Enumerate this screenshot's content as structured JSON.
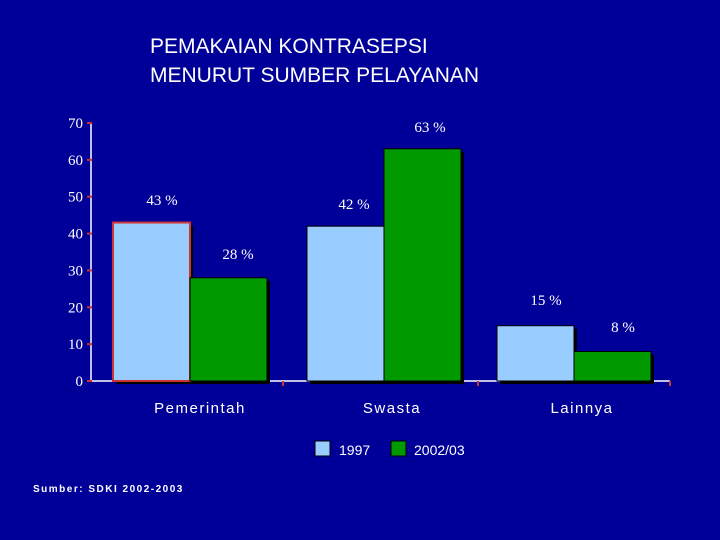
{
  "title": {
    "line1": "PEMAKAIAN KONTRASEPSI",
    "line2": "MENURUT SUMBER PELAYANAN"
  },
  "source": "Sumber: SDKI 2002-2003",
  "colors": {
    "background": "#000099",
    "series_1997": "#99ccff",
    "series_2002": "#009900",
    "axis": "#ffffff",
    "text": "#ffffff",
    "tick_mark": "#cc3333"
  },
  "chart_data": {
    "type": "bar",
    "categories": [
      "Pemerintah",
      "Swasta",
      "Lainnya"
    ],
    "series": [
      {
        "name": "1997",
        "values": [
          43,
          42,
          15
        ],
        "labels": [
          "43 %",
          "",
          "15 %"
        ]
      },
      {
        "name": "2002/03",
        "values": [
          28,
          63,
          8
        ],
        "labels": [
          "28 %",
          "63 %",
          "8 %"
        ]
      }
    ],
    "extra_labels": [
      {
        "text": "42 %",
        "series": 0,
        "category": 1
      }
    ],
    "ylim": [
      0,
      70
    ],
    "yticks": [
      0,
      10,
      20,
      30,
      40,
      50,
      60,
      70
    ],
    "grid": false,
    "legend_position": "bottom"
  }
}
